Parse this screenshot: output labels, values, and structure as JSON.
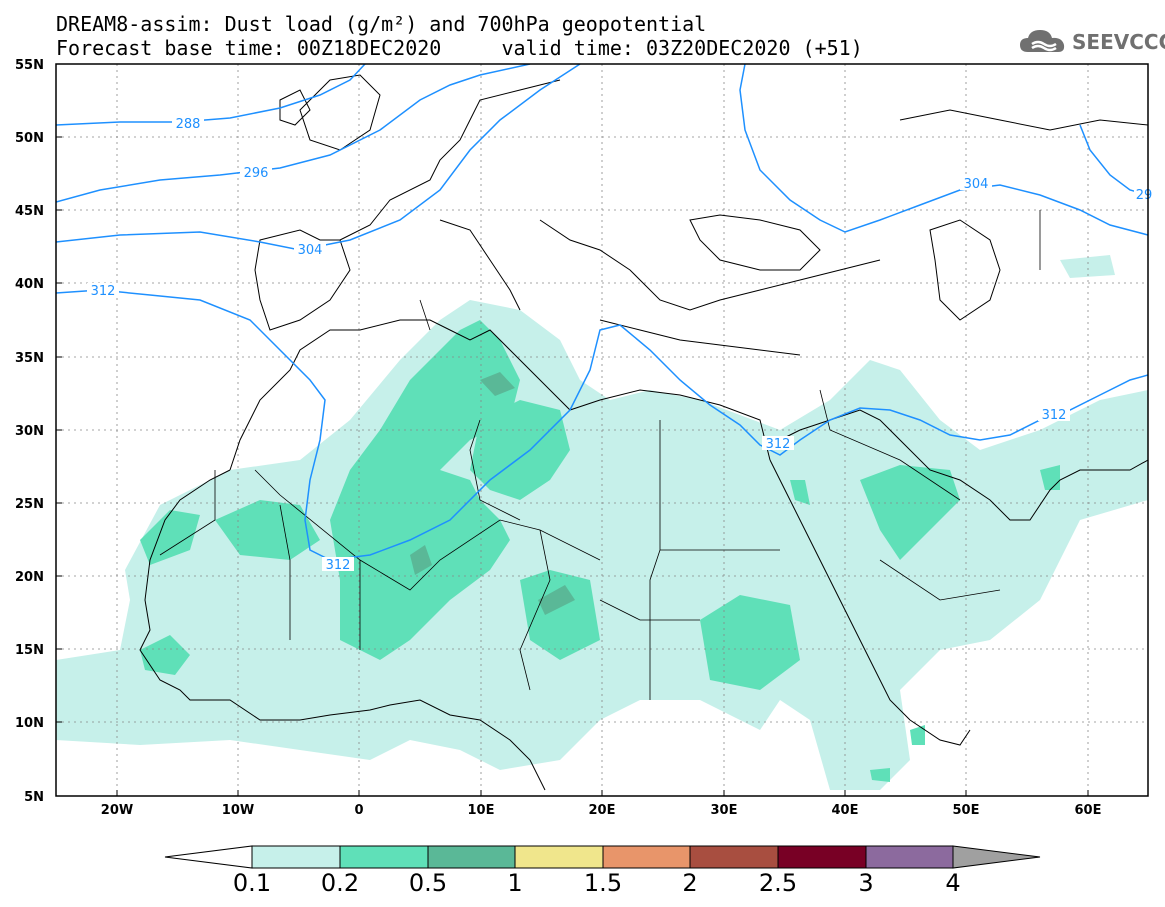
{
  "header": {
    "title_line1": "DREAM8-assim: Dust load (g/m²) and 700hPa geopotential",
    "title_line2": "Forecast base time: 00Z18DEC2020     valid time: 03Z20DEC2020 (+51)",
    "logo_text": "SEEVCCC",
    "logo_icon": "cloud-icon"
  },
  "map": {
    "lat_labels": [
      "55N",
      "50N",
      "45N",
      "40N",
      "35N",
      "30N",
      "25N",
      "20N",
      "15N",
      "10N",
      "5N"
    ],
    "lon_labels": [
      "20W",
      "10W",
      "0",
      "10E",
      "20E",
      "30E",
      "40E",
      "50E",
      "60E"
    ],
    "contour_labels": [
      "288",
      "296",
      "304",
      "304",
      "312",
      "312",
      "312",
      "312",
      "29"
    ],
    "colors": {
      "frame": "#000000",
      "coast": "#000000",
      "contour": "#1e90ff",
      "grid": "#888888"
    }
  },
  "colorbar": {
    "ticks": [
      "0.1",
      "0.2",
      "0.5",
      "1",
      "1.5",
      "2",
      "2.5",
      "3",
      "4"
    ],
    "colors": [
      "#c6f0ea",
      "#5fe0b8",
      "#5ab897",
      "#f0e68c",
      "#e8956a",
      "#a84e40",
      "#780025",
      "#8c6a9e",
      "#a0a0a0"
    ],
    "under_color": "#ffffff",
    "over_color": "#a0a0a0"
  }
}
